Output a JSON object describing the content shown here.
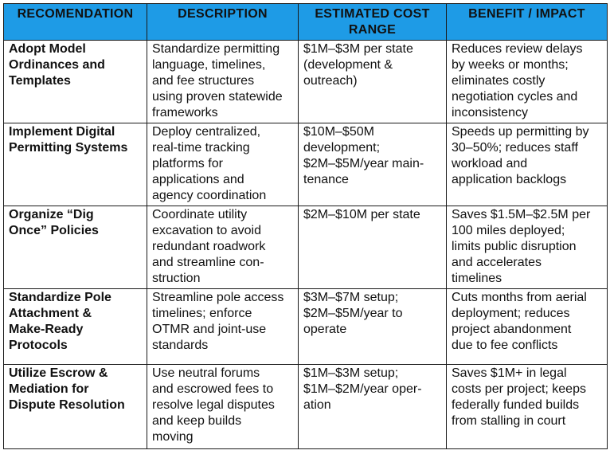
{
  "headers": {
    "recommendation": "RECOMENDATION",
    "description": "DESCRIPTION",
    "cost": "ESTIMATED COST\nRANGE",
    "benefit": "BENEFIT / IMPACT"
  },
  "rows": [
    {
      "recommendation": "Adopt Model\nOrdinances and\nTemplates",
      "description": "Standardize permitting\nlanguage, timelines,\nand fee structures\nusing proven statewide\nframeworks",
      "cost": "$1M–$3M per state\n(development &\noutreach)",
      "benefit": "Reduces review delays\nby weeks or months;\neliminates costly\nnegotiation cycles and\ninconsistency"
    },
    {
      "recommendation": "Implement Digital\nPermitting Systems",
      "description": "Deploy centralized,\nreal-time tracking\nplatforms for\napplications and\nagency coordination",
      "cost": "$10M–$50M\ndevelopment;\n$2M–$5M/year main-\ntenance",
      "benefit": "Speeds up permitting by\n30–50%; reduces staff\nworkload and\napplication backlogs"
    },
    {
      "recommendation": "Organize “Dig\nOnce” Policies",
      "description": "Coordinate utility\nexcavation to avoid\nredundant roadwork\nand streamline con-\nstruction",
      "cost": "$2M–$10M per state",
      "benefit": "Saves $1.5M–$2.5M per\n100 miles deployed;\nlimits public disruption\nand accelerates\ntimelines"
    },
    {
      "recommendation": "Standardize Pole\nAttachment &\nMake-Ready\nProtocols",
      "description": "Streamline pole access\ntimelines; enforce\nOTMR and joint-use\nstandards",
      "cost": "$3M–$7M setup;\n$2M–$5M/year to\noperate",
      "benefit": "Cuts months from aerial\ndeployment; reduces\nproject abandonment\ndue to fee conflicts"
    },
    {
      "recommendation": "Utilize Escrow &\nMediation for\nDispute Resolution",
      "description": "Use neutral forums\nand escrowed fees to\nresolve legal disputes\nand keep builds\nmoving",
      "cost": "$1M–$3M setup;\n$1M–$2M/year oper-\nation",
      "benefit": "Saves $1M+ in legal\ncosts per project; keeps\nfederally funded builds\nfrom stalling in court"
    }
  ]
}
